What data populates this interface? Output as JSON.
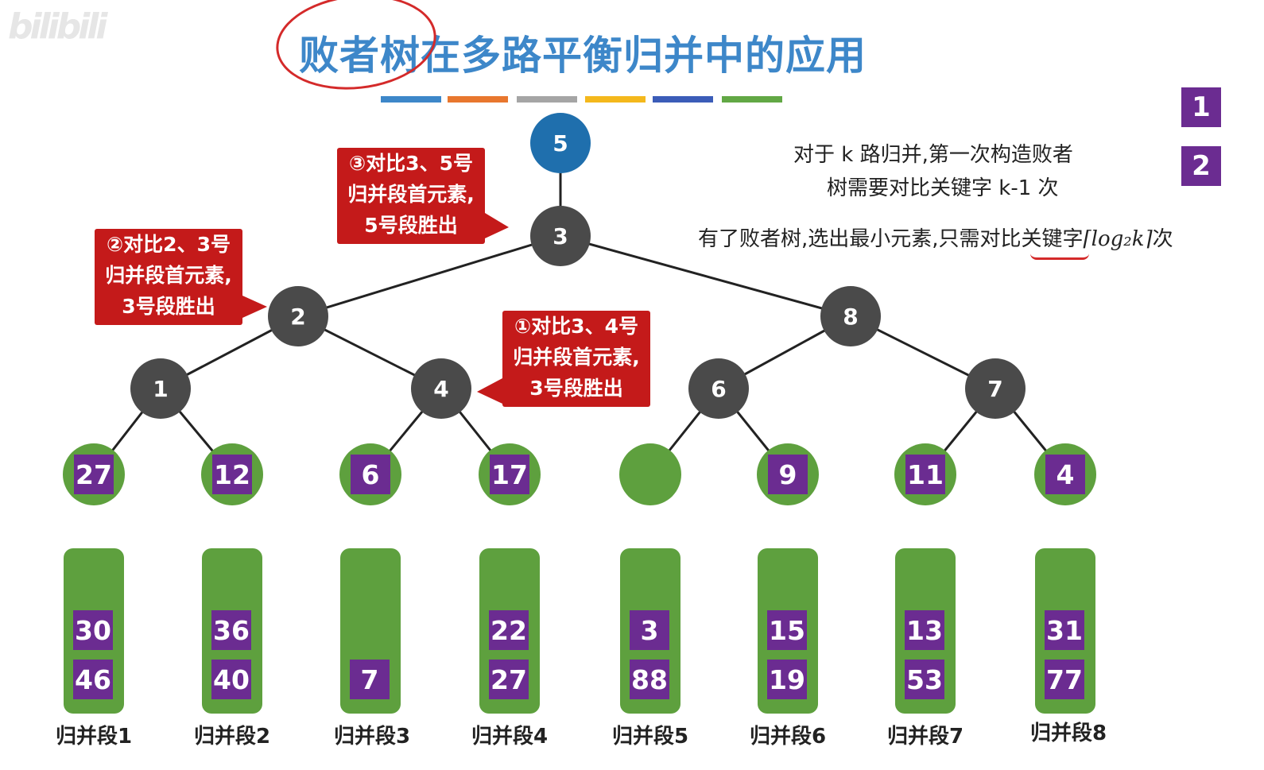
{
  "watermark": "bilibili",
  "title": "败者树在多路平衡归并中的应用",
  "title_bar_colors": [
    "#3d87c9",
    "#e8772e",
    "#a5a5a5",
    "#f4b81c",
    "#3b5cb8",
    "#62a845"
  ],
  "tree": {
    "root": "5",
    "internal": {
      "n3": "3",
      "n2": "2",
      "n8": "8",
      "n1": "1",
      "n4": "4",
      "n6": "6",
      "n7": "7"
    },
    "leaves": [
      "27",
      "12",
      "6",
      "17",
      "",
      "9",
      "11",
      "4"
    ]
  },
  "segments": [
    {
      "label": "归并段1",
      "values": [
        "30",
        "46"
      ]
    },
    {
      "label": "归并段2",
      "values": [
        "36",
        "40"
      ]
    },
    {
      "label": "归并段3",
      "values": [
        "",
        "7"
      ]
    },
    {
      "label": "归并段4",
      "values": [
        "22",
        "27"
      ]
    },
    {
      "label": "归并段5",
      "values": [
        "3",
        "88"
      ]
    },
    {
      "label": "归并段6",
      "values": [
        "15",
        "19"
      ]
    },
    {
      "label": "归并段7",
      "values": [
        "13",
        "53"
      ]
    },
    {
      "label": "归并段8",
      "values": [
        "31",
        "77"
      ]
    }
  ],
  "callouts": {
    "c3": [
      "③对比3、5号",
      "归并段首元素,",
      "5号段胜出"
    ],
    "c2": [
      "②对比2、3号",
      "归并段首元素,",
      "3号段胜出"
    ],
    "c1": [
      "①对比3、4号",
      "归并段首元素,",
      "3号段胜出"
    ]
  },
  "notes": {
    "line1": "对于 k 路归并,第一次构造败者",
    "line2": "树需要对比关键字 k-1 次",
    "line3_prefix": "有了败者树,选出最小元素,只需对比关键字",
    "line3_formula": "⌈log₂k⌉",
    "line3_suffix": "次"
  },
  "legend": [
    "1",
    "2"
  ],
  "colors": {
    "loser_node": "#4a4a4a",
    "root_node": "#1f6fad",
    "leaf_green": "#5ea03e",
    "value_purple": "#6b2c91",
    "callout_red": "#c41a1a",
    "title_blue": "#3d87c9",
    "annotation_red": "#d42a2a"
  }
}
